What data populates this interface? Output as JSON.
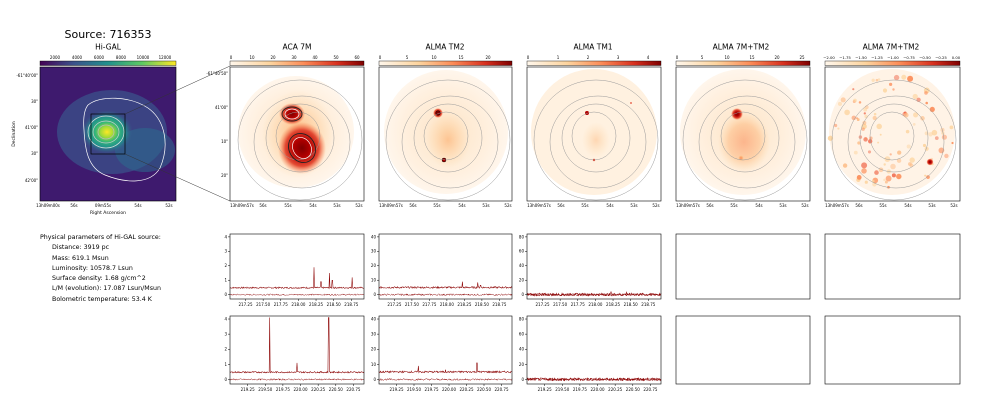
{
  "figure": {
    "source_title": "Source: 716353"
  },
  "map_panels": [
    {
      "id": "higal",
      "title": "Hi-GAL",
      "colormap": "viridis",
      "colorbar_ticks": [
        "2000",
        "4000",
        "6000",
        "8000",
        "10000",
        "12000"
      ],
      "ytick_labels": [
        "-61°40'00\"",
        "30\"",
        "41'00\"",
        "30\"",
        "42'00\""
      ],
      "xtick_labels": [
        "13h09m00s",
        "56s",
        "09m55s",
        "54s",
        "52s"
      ],
      "xlabel": "Right Ascension",
      "ylabel": "Declination"
    },
    {
      "id": "aca7m",
      "title": "ACA 7M",
      "colormap": "orrd",
      "colorbar_ticks": [
        "0",
        "10",
        "20",
        "30",
        "40",
        "50",
        "60"
      ],
      "ytick_labels": [
        "-61°40'50\"",
        "41'00\"",
        "10\"",
        "20\""
      ],
      "xtick_labels": [
        "13h09m57s",
        "56s",
        "55s",
        "54s",
        "53s",
        "52s"
      ]
    },
    {
      "id": "tm2",
      "title": "ALMA TM2",
      "colormap": "orrd",
      "colorbar_ticks": [
        "0",
        "5",
        "10",
        "15",
        "20"
      ],
      "xtick_labels": [
        "13h09m57s",
        "56s",
        "55s",
        "54s",
        "53s",
        "52s"
      ]
    },
    {
      "id": "tm1",
      "title": "ALMA TM1",
      "colormap": "orrd",
      "colorbar_ticks": [
        "0",
        "1",
        "2",
        "3",
        "4"
      ],
      "xtick_labels": [
        "13h09m57s",
        "56s",
        "55s",
        "54s",
        "53s",
        "52s"
      ]
    },
    {
      "id": "7mtm2",
      "title": "ALMA 7M+TM2",
      "colormap": "orrd",
      "colorbar_ticks": [
        "0",
        "5",
        "10",
        "15",
        "20",
        "25"
      ],
      "xtick_labels": [
        "13h09m57s",
        "56s",
        "55s",
        "54s",
        "53s",
        "52s"
      ]
    },
    {
      "id": "7mtm2neg",
      "title": "ALMA 7M+TM2",
      "colormap": "orrd",
      "colorbar_ticks": [
        "−2.00",
        "−1.75",
        "−1.50",
        "−1.25",
        "−1.00",
        "−0.75",
        "−0.50",
        "−0.25",
        "0.00"
      ],
      "xtick_labels": [
        "13h09m57s",
        "56s",
        "55s",
        "54s",
        "53s",
        "52s"
      ]
    }
  ],
  "physical_parameters": {
    "header": "Physical parameters of Hi-GAL source:",
    "lines": [
      "Distance: 3919 pc",
      "Mass: 619.1 Msun",
      "Luminosity: 10578.7 Lsun",
      "Surface density: 1.68 g/cm^2",
      "L/M (evolution): 17.087 Lsun/Msun",
      "Bolometric temperature: 53.4 K"
    ]
  },
  "chart_data": [
    {
      "type": "line",
      "panel": "spectrum-row1-aca7m",
      "x_ticks": [
        "217.25",
        "217.50",
        "217.75",
        "218.00",
        "218.25",
        "218.50",
        "218.75"
      ],
      "xlim": [
        217.03,
        218.93
      ],
      "ylim": [
        -0.3,
        4.2
      ],
      "y_ticks": [
        0,
        1,
        2,
        3,
        4
      ],
      "baseline_upper": 0.48,
      "baseline_lower": 0.0,
      "noise": 0.05,
      "lines": [
        {
          "x": 218.22,
          "y": 1.9
        },
        {
          "x": 218.32,
          "y": 0.9
        },
        {
          "x": 218.44,
          "y": 1.5
        },
        {
          "x": 218.48,
          "y": 1.0
        },
        {
          "x": 218.76,
          "y": 1.2
        }
      ]
    },
    {
      "type": "line",
      "panel": "spectrum-row1-tm2",
      "x_ticks": [
        "217.25",
        "217.50",
        "217.75",
        "218.00",
        "218.25",
        "218.50",
        "218.75"
      ],
      "xlim": [
        217.03,
        218.93
      ],
      "ylim": [
        -3,
        42
      ],
      "y_ticks": [
        0,
        10,
        20,
        30,
        40
      ],
      "baseline_upper": 5.0,
      "baseline_lower": 0.0,
      "noise": 0.6,
      "lines": [
        {
          "x": 218.22,
          "y": 9.0
        },
        {
          "x": 218.44,
          "y": 8.5
        },
        {
          "x": 218.48,
          "y": 6.5
        }
      ]
    },
    {
      "type": "line",
      "panel": "spectrum-row1-tm1",
      "x_ticks": [
        "217.25",
        "217.50",
        "217.75",
        "218.00",
        "218.25",
        "218.50",
        "218.75"
      ],
      "xlim": [
        217.03,
        218.93
      ],
      "ylim": [
        -6,
        84
      ],
      "y_ticks": [
        0,
        20,
        40,
        60,
        80
      ],
      "baseline_upper": 0.3,
      "baseline_lower": 0.0,
      "noise": 1.8,
      "lines": [
        {
          "x": 218.22,
          "y": 4.0
        },
        {
          "x": 218.44,
          "y": 3.5
        }
      ]
    },
    {
      "type": "line",
      "panel": "spectrum-row2-aca7m",
      "x_ticks": [
        "219.25",
        "219.50",
        "219.75",
        "220.00",
        "220.25",
        "220.50",
        "220.75"
      ],
      "xlim": [
        219.0,
        220.9
      ],
      "ylim": [
        -0.3,
        4.2
      ],
      "y_ticks": [
        0,
        1,
        2,
        3,
        4
      ],
      "baseline_upper": 0.48,
      "baseline_lower": 0.0,
      "noise": 0.05,
      "lines": [
        {
          "x": 219.56,
          "y": 4.1
        },
        {
          "x": 219.95,
          "y": 1.1
        },
        {
          "x": 220.4,
          "y": 4.1
        }
      ]
    },
    {
      "type": "line",
      "panel": "spectrum-row2-tm2",
      "x_ticks": [
        "219.25",
        "219.50",
        "219.75",
        "220.00",
        "220.25",
        "220.50",
        "220.75"
      ],
      "xlim": [
        219.0,
        220.9
      ],
      "ylim": [
        -3,
        42
      ],
      "y_ticks": [
        0,
        10,
        20,
        30,
        40
      ],
      "baseline_upper": 5.0,
      "baseline_lower": 0.0,
      "noise": 0.6,
      "lines": [
        {
          "x": 219.56,
          "y": 9.0
        },
        {
          "x": 219.95,
          "y": 6.5
        },
        {
          "x": 220.4,
          "y": 11.0
        }
      ]
    },
    {
      "type": "line",
      "panel": "spectrum-row2-tm1",
      "x_ticks": [
        "219.25",
        "219.50",
        "219.75",
        "220.00",
        "220.25",
        "220.50",
        "220.75"
      ],
      "xlim": [
        219.0,
        220.9
      ],
      "ylim": [
        -6,
        84
      ],
      "y_ticks": [
        0,
        20,
        40,
        60,
        80
      ],
      "baseline_upper": 0.3,
      "baseline_lower": 0.0,
      "noise": 1.8,
      "lines": []
    }
  ],
  "colors": {
    "spectrum": "#8b0000",
    "contour": "#999999",
    "contour_white": "#ffffff",
    "frame": "#000000"
  }
}
